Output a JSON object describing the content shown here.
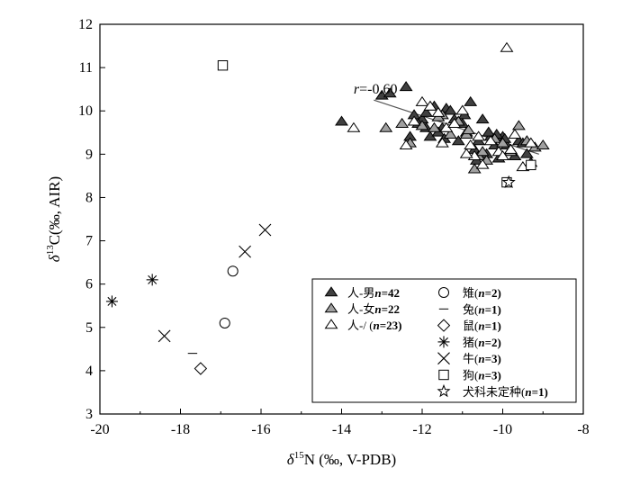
{
  "chart_data": {
    "type": "scatter",
    "title": "",
    "xlabel": "δ¹⁵N (‰, V-PDB)",
    "ylabel": "δ¹³C(‰, AIR)",
    "xlim": [
      -20,
      -8
    ],
    "ylim": [
      3,
      12
    ],
    "xticks": [
      -20,
      -18,
      -16,
      -14,
      -12,
      -10,
      -8
    ],
    "yticks": [
      3,
      4,
      5,
      6,
      7,
      8,
      9,
      10,
      11,
      12
    ],
    "grid": false,
    "legend_position": "bottom-right",
    "annotation": {
      "text": "r=-0.60",
      "x": -13.7,
      "y": 10.4
    },
    "trendline": {
      "x": [
        -13.2,
        -9.1
      ],
      "y": [
        10.25,
        9.0
      ]
    },
    "series": [
      {
        "name": "人-男(n=42)",
        "label_main": "人-男",
        "label_n": "n",
        "label_count": "=42",
        "marker": "triangle",
        "fill": "#404040",
        "stroke": "#000000",
        "points": [
          [
            -14,
            9.75
          ],
          [
            -13,
            10.35
          ],
          [
            -12.8,
            10.4
          ],
          [
            -12.4,
            10.55
          ],
          [
            -12.2,
            9.9
          ],
          [
            -12.0,
            9.8
          ],
          [
            -11.9,
            9.6
          ],
          [
            -11.8,
            9.4
          ],
          [
            -11.5,
            9.6
          ],
          [
            -11.4,
            10.05
          ],
          [
            -11.2,
            9.8
          ],
          [
            -11.1,
            9.3
          ],
          [
            -11.0,
            9.7
          ],
          [
            -10.9,
            9.5
          ],
          [
            -10.8,
            10.2
          ],
          [
            -10.7,
            9.1
          ],
          [
            -10.6,
            9.3
          ],
          [
            -10.5,
            9.8
          ],
          [
            -10.4,
            9.0
          ],
          [
            -10.3,
            9.4
          ],
          [
            -10.2,
            9.2
          ],
          [
            -10.1,
            8.9
          ],
          [
            -10.0,
            9.4
          ],
          [
            -9.9,
            9.2
          ],
          [
            -9.8,
            9.1
          ],
          [
            -9.6,
            9.3
          ],
          [
            -9.4,
            9.0
          ],
          [
            -9.3,
            8.8
          ],
          [
            -12.3,
            9.4
          ],
          [
            -11.7,
            10.1
          ],
          [
            -11.6,
            9.5
          ],
          [
            -11.3,
            10.0
          ],
          [
            -10.95,
            9.9
          ],
          [
            -10.65,
            8.85
          ],
          [
            -10.35,
            9.5
          ],
          [
            -10.15,
            9.45
          ],
          [
            -9.95,
            9.35
          ],
          [
            -9.7,
            8.95
          ],
          [
            -11.9,
            9.95
          ],
          [
            -12.1,
            9.7
          ],
          [
            -11.45,
            9.35
          ],
          [
            -9.5,
            9.25
          ]
        ]
      },
      {
        "name": "人-女(n=22)",
        "label_main": "人-女",
        "label_n": "n",
        "label_count": "=22",
        "marker": "triangle",
        "fill": "#a0a0a0",
        "stroke": "#000000",
        "points": [
          [
            -12.9,
            9.6
          ],
          [
            -12.5,
            9.7
          ],
          [
            -12.3,
            9.25
          ],
          [
            -12.0,
            9.65
          ],
          [
            -11.7,
            9.6
          ],
          [
            -11.5,
            9.9
          ],
          [
            -11.3,
            9.45
          ],
          [
            -11.1,
            9.75
          ],
          [
            -10.9,
            9.45
          ],
          [
            -10.7,
            8.65
          ],
          [
            -10.6,
            8.95
          ],
          [
            -10.4,
            8.85
          ],
          [
            -10.2,
            9.35
          ],
          [
            -10.0,
            9.25
          ],
          [
            -9.8,
            9.05
          ],
          [
            -9.6,
            9.65
          ],
          [
            -9.4,
            9.3
          ],
          [
            -9.2,
            9.15
          ],
          [
            -9.0,
            9.2
          ],
          [
            -11.6,
            9.85
          ],
          [
            -10.5,
            9.05
          ],
          [
            -10.85,
            9.55
          ]
        ]
      },
      {
        "name": "人-/ (n=23)",
        "label_main": "人-/ (",
        "label_n": "n",
        "label_count": "=23)",
        "marker": "triangle",
        "fill": "#ffffff",
        "stroke": "#000000",
        "points": [
          [
            -13.7,
            9.6
          ],
          [
            -12.4,
            9.2
          ],
          [
            -12.2,
            9.75
          ],
          [
            -12.0,
            10.2
          ],
          [
            -11.8,
            10.1
          ],
          [
            -11.6,
            9.95
          ],
          [
            -11.4,
            9.6
          ],
          [
            -11.2,
            9.7
          ],
          [
            -11.0,
            10.0
          ],
          [
            -10.8,
            9.2
          ],
          [
            -10.7,
            8.95
          ],
          [
            -10.5,
            8.75
          ],
          [
            -10.3,
            9.3
          ],
          [
            -10.1,
            9.05
          ],
          [
            -9.9,
            11.45
          ],
          [
            -9.7,
            9.45
          ],
          [
            -9.5,
            8.7
          ],
          [
            -9.3,
            9.25
          ],
          [
            -10.0,
            8.95
          ],
          [
            -11.5,
            9.25
          ],
          [
            -10.9,
            9.0
          ],
          [
            -10.6,
            9.4
          ],
          [
            -9.8,
            9.1
          ]
        ]
      },
      {
        "name": "雉(n=2)",
        "label_main": "雉(",
        "label_n": "n",
        "label_count": "=2)",
        "marker": "circle",
        "fill": "#ffffff",
        "stroke": "#000000",
        "points": [
          [
            -16.9,
            5.1
          ],
          [
            -16.7,
            6.3
          ]
        ]
      },
      {
        "name": "兔(n=1)",
        "label_main": "兔(",
        "label_n": "n",
        "label_count": "=1)",
        "marker": "dash",
        "fill": "none",
        "stroke": "#000000",
        "points": [
          [
            -17.7,
            4.4
          ]
        ]
      },
      {
        "name": "鼠(n=1)",
        "label_main": "鼠(",
        "label_n": "n",
        "label_count": "=1)",
        "marker": "diamond",
        "fill": "#ffffff",
        "stroke": "#000000",
        "points": [
          [
            -17.5,
            4.05
          ]
        ]
      },
      {
        "name": "猪(n=2)",
        "label_main": "猪(",
        "label_n": "n",
        "label_count": "=2)",
        "marker": "asterisk",
        "fill": "none",
        "stroke": "#000000",
        "points": [
          [
            -19.7,
            5.6
          ],
          [
            -18.7,
            6.1
          ]
        ]
      },
      {
        "name": "牛(n=3)",
        "label_main": "牛(",
        "label_n": "n",
        "label_count": "=3)",
        "marker": "cross",
        "fill": "none",
        "stroke": "#000000",
        "points": [
          [
            -18.4,
            4.8
          ],
          [
            -16.4,
            6.75
          ],
          [
            -15.9,
            7.25
          ]
        ]
      },
      {
        "name": "狗(n=3)",
        "label_main": "狗(",
        "label_n": "n",
        "label_count": "=3)",
        "marker": "square",
        "fill": "#ffffff",
        "stroke": "#000000",
        "points": [
          [
            -16.95,
            11.05
          ],
          [
            -9.9,
            8.35
          ],
          [
            -9.3,
            8.75
          ]
        ]
      },
      {
        "name": "犬科未定种(n=1)",
        "label_main": "犬科未定种(",
        "label_n": "n",
        "label_count": "=1)",
        "marker": "star",
        "fill": "#ffffff",
        "stroke": "#000000",
        "points": [
          [
            -9.85,
            8.35
          ]
        ]
      }
    ]
  }
}
